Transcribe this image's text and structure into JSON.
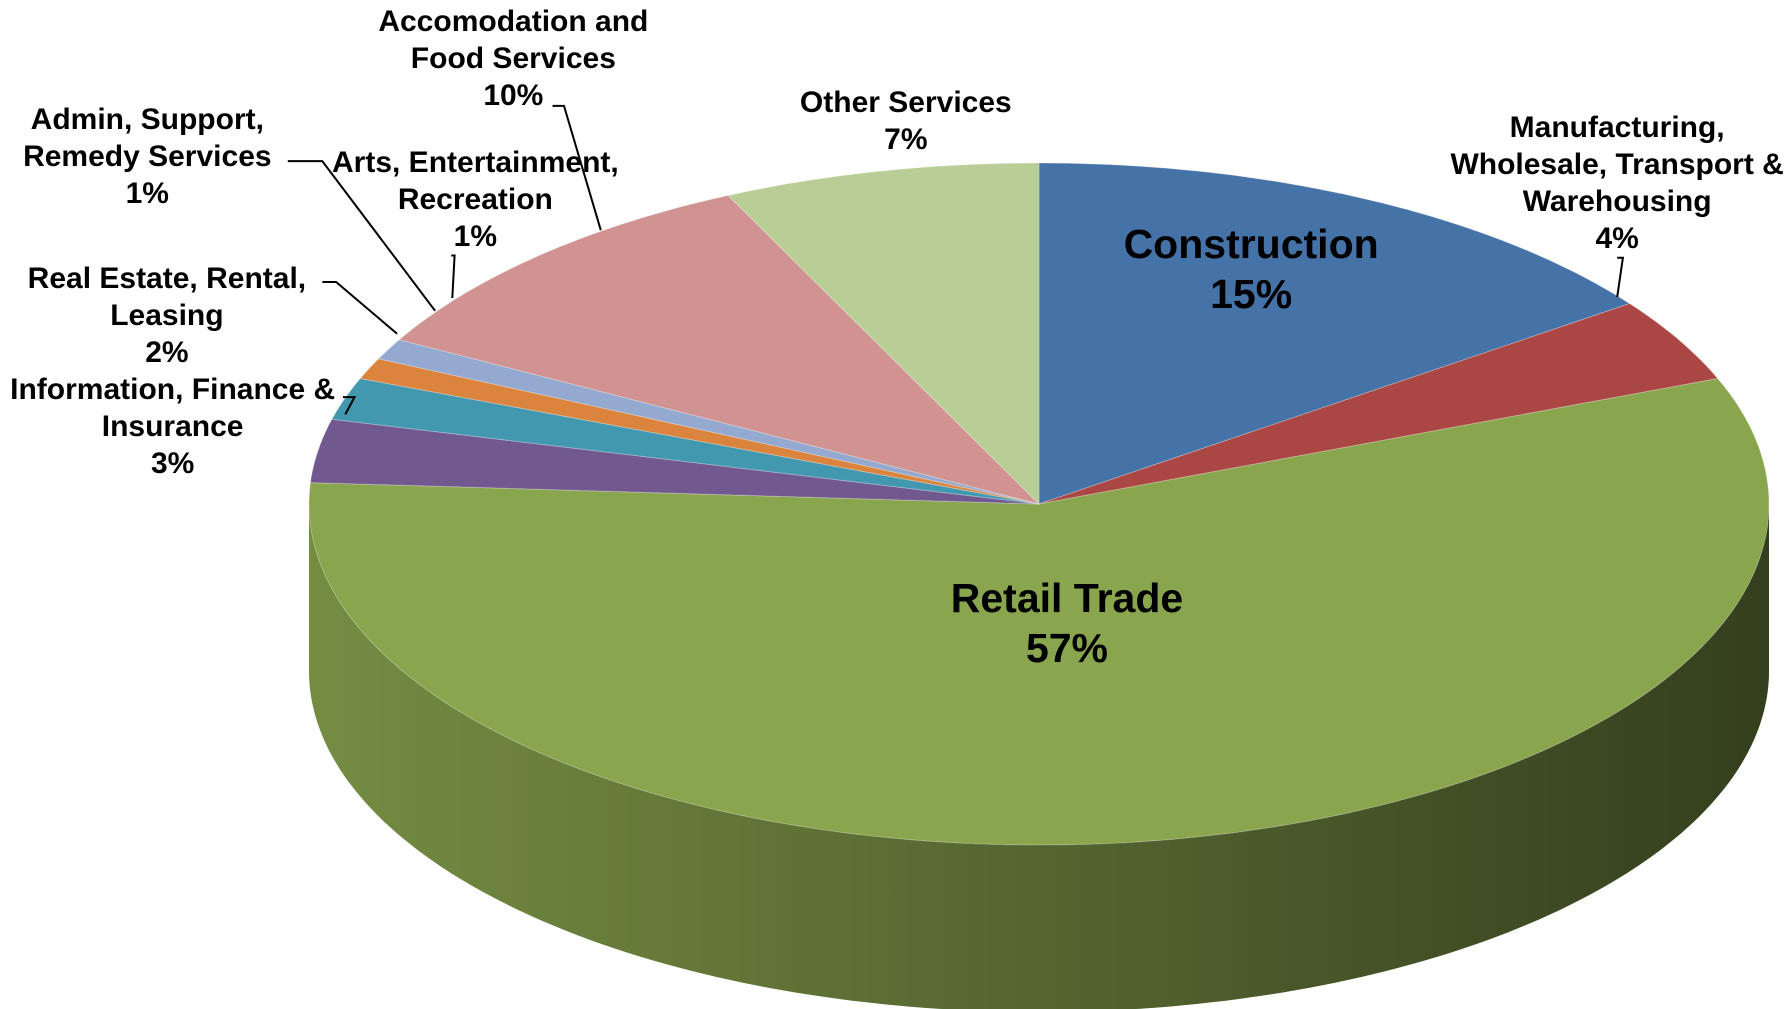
{
  "chart_data": {
    "type": "pie3d",
    "categories": [
      "Construction",
      "Manufacturing, Wholesale, Transport & Warehousing",
      "Retail Trade",
      "Information, Finance & Insurance",
      "Real Estate, Rental, Leasing",
      "Admin, Support, Remedy Services",
      "Arts, Entertainment, Recreation",
      "Accomodation and Food Services",
      "Other Services"
    ],
    "values": [
      15,
      4,
      57,
      3,
      2,
      1,
      1,
      10,
      7
    ],
    "value_labels": [
      "15%",
      "4%",
      "57%",
      "3%",
      "2%",
      "1%",
      "1%",
      "10%",
      "7%"
    ],
    "colors": [
      "#4572a7",
      "#aa4643",
      "#89a54e",
      "#71588f",
      "#4198af",
      "#db843d",
      "#93a9cf",
      "#d19392",
      "#b9cd96"
    ]
  }
}
